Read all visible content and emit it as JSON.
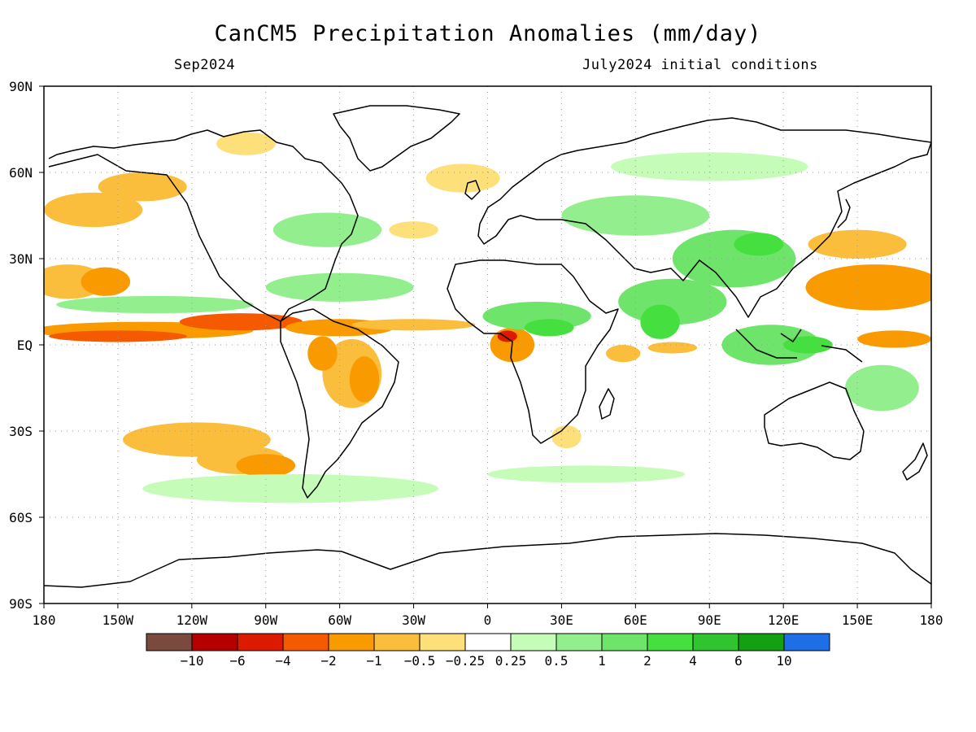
{
  "title": "CanCM5 Precipitation Anomalies (mm/day)",
  "valid_month": "Sep2024",
  "init_conditions": "July2024 initial conditions",
  "map": {
    "projection": "equirectangular",
    "lon_range": [
      -180,
      180
    ],
    "lat_range": [
      -90,
      90
    ],
    "grid": "dotted",
    "lat_labels": [
      "90N",
      "60N",
      "30N",
      "EQ",
      "30S",
      "60S",
      "90S"
    ],
    "lon_labels": [
      "180",
      "150W",
      "120W",
      "90W",
      "60W",
      "30W",
      "0",
      "30E",
      "60E",
      "90E",
      "120E",
      "150E",
      "180"
    ]
  },
  "colorbar": {
    "colors": [
      "#7a4a3e",
      "#b40000",
      "#dc1a00",
      "#f55a00",
      "#f99b00",
      "#fbbd3c",
      "#fde07a",
      "#ffffff",
      "#c4fcb8",
      "#93ee8e",
      "#6fe46a",
      "#46df40",
      "#31c431",
      "#13a013",
      "#1e6fe6"
    ],
    "labels": [
      "−10",
      "−6",
      "−4",
      "−2",
      "−1",
      "−0.5",
      "−0.25",
      "0.25",
      "0.5",
      "1",
      "2",
      "4",
      "6",
      "10"
    ]
  },
  "anomaly_regions": [
    {
      "lon": -140,
      "lat": 5,
      "rx": 45,
      "ry": 3,
      "level": 4
    },
    {
      "lon": -150,
      "lat": 3,
      "rx": 28,
      "ry": 2,
      "level": 3
    },
    {
      "lon": -100,
      "lat": 8,
      "rx": 25,
      "ry": 3,
      "level": 3
    },
    {
      "lon": -60,
      "lat": 6,
      "rx": 22,
      "ry": 3,
      "level": 4
    },
    {
      "lon": -30,
      "lat": 7,
      "rx": 25,
      "ry": 2,
      "level": 5
    },
    {
      "lon": -170,
      "lat": 22,
      "rx": 15,
      "ry": 6,
      "level": 5
    },
    {
      "lon": -155,
      "lat": 22,
      "rx": 10,
      "ry": 5,
      "level": 4
    },
    {
      "lon": -160,
      "lat": 47,
      "rx": 20,
      "ry": 6,
      "level": 5
    },
    {
      "lon": -140,
      "lat": 55,
      "rx": 18,
      "ry": 5,
      "level": 5
    },
    {
      "lon": -118,
      "lat": -33,
      "rx": 30,
      "ry": 6,
      "level": 5
    },
    {
      "lon": -100,
      "lat": -40,
      "rx": 18,
      "ry": 5,
      "level": 5
    },
    {
      "lon": -90,
      "lat": -42,
      "rx": 12,
      "ry": 4,
      "level": 4
    },
    {
      "lon": -55,
      "lat": -10,
      "rx": 12,
      "ry": 12,
      "level": 5
    },
    {
      "lon": -50,
      "lat": -12,
      "rx": 6,
      "ry": 8,
      "level": 4
    },
    {
      "lon": -67,
      "lat": -3,
      "rx": 6,
      "ry": 6,
      "level": 4
    },
    {
      "lon": 10,
      "lat": 0,
      "rx": 9,
      "ry": 6,
      "level": 4
    },
    {
      "lon": 8,
      "lat": 3,
      "rx": 4,
      "ry": 2,
      "level": 2
    },
    {
      "lon": 157,
      "lat": 20,
      "rx": 28,
      "ry": 8,
      "level": 4
    },
    {
      "lon": 165,
      "lat": 2,
      "rx": 15,
      "ry": 3,
      "level": 4
    },
    {
      "lon": 150,
      "lat": 35,
      "rx": 20,
      "ry": 5,
      "level": 5
    },
    {
      "lon": 55,
      "lat": -3,
      "rx": 7,
      "ry": 3,
      "level": 5
    },
    {
      "lon": 75,
      "lat": -1,
      "rx": 10,
      "ry": 2,
      "level": 5
    },
    {
      "lon": 32,
      "lat": -32,
      "rx": 6,
      "ry": 4,
      "level": 6
    },
    {
      "lon": -30,
      "lat": 40,
      "rx": 10,
      "ry": 3,
      "level": 6
    },
    {
      "lon": -10,
      "lat": 58,
      "rx": 15,
      "ry": 5,
      "level": 6
    },
    {
      "lon": -98,
      "lat": 70,
      "rx": 12,
      "ry": 4,
      "level": 6
    },
    {
      "lon": -135,
      "lat": 14,
      "rx": 40,
      "ry": 3,
      "level": 9
    },
    {
      "lon": -60,
      "lat": 20,
      "rx": 30,
      "ry": 5,
      "level": 9
    },
    {
      "lon": -65,
      "lat": 40,
      "rx": 22,
      "ry": 6,
      "level": 9
    },
    {
      "lon": 20,
      "lat": 10,
      "rx": 22,
      "ry": 5,
      "level": 10
    },
    {
      "lon": 25,
      "lat": 6,
      "rx": 10,
      "ry": 3,
      "level": 11
    },
    {
      "lon": 75,
      "lat": 15,
      "rx": 22,
      "ry": 8,
      "level": 10
    },
    {
      "lon": 70,
      "lat": 8,
      "rx": 8,
      "ry": 6,
      "level": 11
    },
    {
      "lon": 100,
      "lat": 30,
      "rx": 25,
      "ry": 10,
      "level": 10
    },
    {
      "lon": 115,
      "lat": 0,
      "rx": 20,
      "ry": 7,
      "level": 10
    },
    {
      "lon": 130,
      "lat": 0,
      "rx": 10,
      "ry": 3,
      "level": 11
    },
    {
      "lon": 60,
      "lat": 45,
      "rx": 30,
      "ry": 7,
      "level": 9
    },
    {
      "lon": 90,
      "lat": 62,
      "rx": 40,
      "ry": 5,
      "level": 8
    },
    {
      "lon": 160,
      "lat": -15,
      "rx": 15,
      "ry": 8,
      "level": 9
    },
    {
      "lon": -80,
      "lat": -50,
      "rx": 60,
      "ry": 5,
      "level": 8
    },
    {
      "lon": 40,
      "lat": -45,
      "rx": 40,
      "ry": 3,
      "level": 8
    },
    {
      "lon": 110,
      "lat": 35,
      "rx": 10,
      "ry": 4,
      "level": 11
    }
  ]
}
